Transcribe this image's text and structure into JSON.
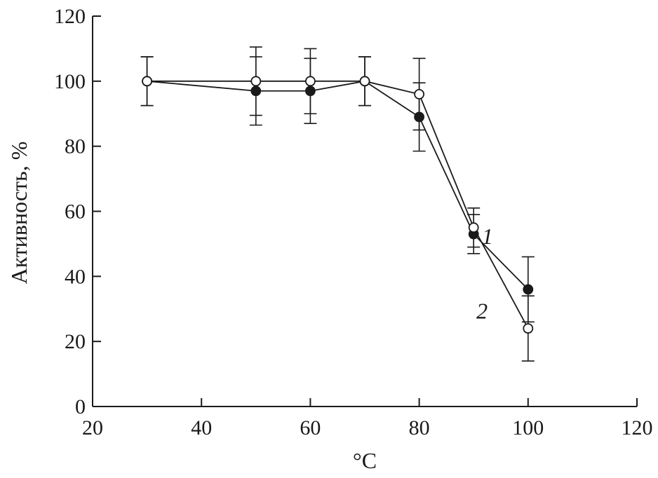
{
  "chart_data": {
    "type": "line",
    "title": "",
    "xlabel": "°C",
    "ylabel": "Активность, %",
    "xlim": [
      20,
      120
    ],
    "ylim": [
      0,
      120
    ],
    "xticks": [
      20,
      40,
      60,
      80,
      100,
      120
    ],
    "yticks": [
      0,
      20,
      40,
      60,
      80,
      100,
      120
    ],
    "grid": false,
    "series": [
      {
        "name": "1",
        "marker": "filled-circle",
        "x": [
          30,
          50,
          60,
          70,
          80,
          90,
          100
        ],
        "y": [
          100,
          97,
          97,
          100,
          89,
          53,
          36
        ],
        "err": [
          7.5,
          10.5,
          10,
          7.5,
          10.5,
          6,
          10
        ],
        "color": "#1a1a1a"
      },
      {
        "name": "2",
        "marker": "open-circle",
        "x": [
          30,
          50,
          60,
          70,
          80,
          90,
          100
        ],
        "y": [
          100,
          100,
          100,
          100,
          96,
          55,
          24
        ],
        "err": [
          7.5,
          10.5,
          10,
          7.5,
          11,
          6,
          10
        ],
        "color": "#1a1a1a"
      }
    ]
  }
}
